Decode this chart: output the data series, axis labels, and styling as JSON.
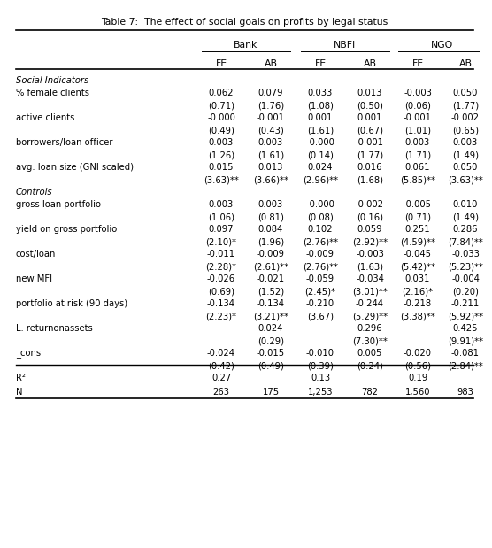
{
  "title": "Table 7:  The effect of social goals on profits by legal status",
  "rows": [
    {
      "label": "Social Indicators",
      "italic": true,
      "section": true,
      "values": [
        "",
        "",
        "",
        "",
        "",
        ""
      ]
    },
    {
      "label": "% female clients",
      "italic": false,
      "section": false,
      "values": [
        "0.062",
        "0.079",
        "0.033",
        "0.013",
        "-0.003",
        "0.050"
      ]
    },
    {
      "label": "",
      "italic": false,
      "section": false,
      "values": [
        "(0.71)",
        "(1.76)",
        "(1.08)",
        "(0.50)",
        "(0.06)",
        "(1.77)"
      ]
    },
    {
      "label": "active clients",
      "italic": false,
      "section": false,
      "values": [
        "-0.000",
        "-0.001",
        "0.001",
        "0.001",
        "-0.001",
        "-0.002"
      ]
    },
    {
      "label": "",
      "italic": false,
      "section": false,
      "values": [
        "(0.49)",
        "(0.43)",
        "(1.61)",
        "(0.67)",
        "(1.01)",
        "(0.65)"
      ]
    },
    {
      "label": "borrowers/loan officer",
      "italic": false,
      "section": false,
      "values": [
        "0.003",
        "0.003",
        "-0.000",
        "-0.001",
        "0.003",
        "0.003"
      ]
    },
    {
      "label": "",
      "italic": false,
      "section": false,
      "values": [
        "(1.26)",
        "(1.61)",
        "(0.14)",
        "(1.77)",
        "(1.71)",
        "(1.49)"
      ]
    },
    {
      "label": "avg. loan size (GNI scaled)",
      "italic": false,
      "section": false,
      "values": [
        "0.015",
        "0.013",
        "0.024",
        "0.016",
        "0.061",
        "0.050"
      ]
    },
    {
      "label": "",
      "italic": false,
      "section": false,
      "values": [
        "(3.63)**",
        "(3.66)**",
        "(2.96)**",
        "(1.68)",
        "(5.85)**",
        "(3.63)**"
      ]
    },
    {
      "label": "Controls",
      "italic": true,
      "section": true,
      "values": [
        "",
        "",
        "",
        "",
        "",
        ""
      ]
    },
    {
      "label": "gross loan portfolio",
      "italic": false,
      "section": false,
      "values": [
        "0.003",
        "0.003",
        "-0.000",
        "-0.002",
        "-0.005",
        "0.010"
      ]
    },
    {
      "label": "",
      "italic": false,
      "section": false,
      "values": [
        "(1.06)",
        "(0.81)",
        "(0.08)",
        "(0.16)",
        "(0.71)",
        "(1.49)"
      ]
    },
    {
      "label": "yield on gross portfolio",
      "italic": false,
      "section": false,
      "values": [
        "0.097",
        "0.084",
        "0.102",
        "0.059",
        "0.251",
        "0.286"
      ]
    },
    {
      "label": "",
      "italic": false,
      "section": false,
      "values": [
        "(2.10)*",
        "(1.96)",
        "(2.76)**",
        "(2.92)**",
        "(4.59)**",
        "(7.84)**"
      ]
    },
    {
      "label": "cost/loan",
      "italic": false,
      "section": false,
      "values": [
        "-0.011",
        "-0.009",
        "-0.009",
        "-0.003",
        "-0.045",
        "-0.033"
      ]
    },
    {
      "label": "",
      "italic": false,
      "section": false,
      "values": [
        "(2.28)*",
        "(2.61)**",
        "(2.76)**",
        "(1.63)",
        "(5.42)**",
        "(5.23)**"
      ]
    },
    {
      "label": "new MFI",
      "italic": false,
      "section": false,
      "values": [
        "-0.026",
        "-0.021",
        "-0.059",
        "-0.034",
        "0.031",
        "-0.004"
      ]
    },
    {
      "label": "",
      "italic": false,
      "section": false,
      "values": [
        "(0.69)",
        "(1.52)",
        "(2.45)*",
        "(3.01)**",
        "(2.16)*",
        "(0.20)"
      ]
    },
    {
      "label": "portfolio at risk (90 days)",
      "italic": false,
      "section": false,
      "values": [
        "-0.134",
        "-0.134",
        "-0.210",
        "-0.244",
        "-0.218",
        "-0.211"
      ]
    },
    {
      "label": "",
      "italic": false,
      "section": false,
      "values": [
        "(2.23)*",
        "(3.21)**",
        "(3.67)",
        "(5.29)**",
        "(3.38)**",
        "(5.92)**"
      ]
    },
    {
      "label": "L. returnonassets",
      "italic": false,
      "section": false,
      "values": [
        "",
        "0.024",
        "",
        "0.296",
        "",
        "0.425"
      ]
    },
    {
      "label": "",
      "italic": false,
      "section": false,
      "values": [
        "",
        "(0.29)",
        "",
        "(7.30)**",
        "",
        "(9.91)**"
      ]
    },
    {
      "label": "_cons",
      "italic": false,
      "section": false,
      "values": [
        "-0.024",
        "-0.015",
        "-0.010",
        "0.005",
        "-0.020",
        "-0.081"
      ]
    },
    {
      "label": "",
      "italic": false,
      "section": false,
      "values": [
        "(0.42)",
        "(0.49)",
        "(0.39)",
        "(0.24)",
        "(0.56)",
        "(2.84)**"
      ]
    },
    {
      "label": "R²",
      "italic": false,
      "section": false,
      "r2_row": true,
      "values": [
        "0.27",
        "",
        "0.13",
        "",
        "0.19",
        ""
      ]
    },
    {
      "label": "N",
      "italic": false,
      "section": false,
      "n_row": true,
      "values": [
        "263",
        "175",
        "1,253",
        "782",
        "1,560",
        "983"
      ]
    }
  ],
  "bg_color": "#ffffff",
  "text_color": "#000000",
  "font_size": 7.2,
  "header_font_size": 7.8
}
